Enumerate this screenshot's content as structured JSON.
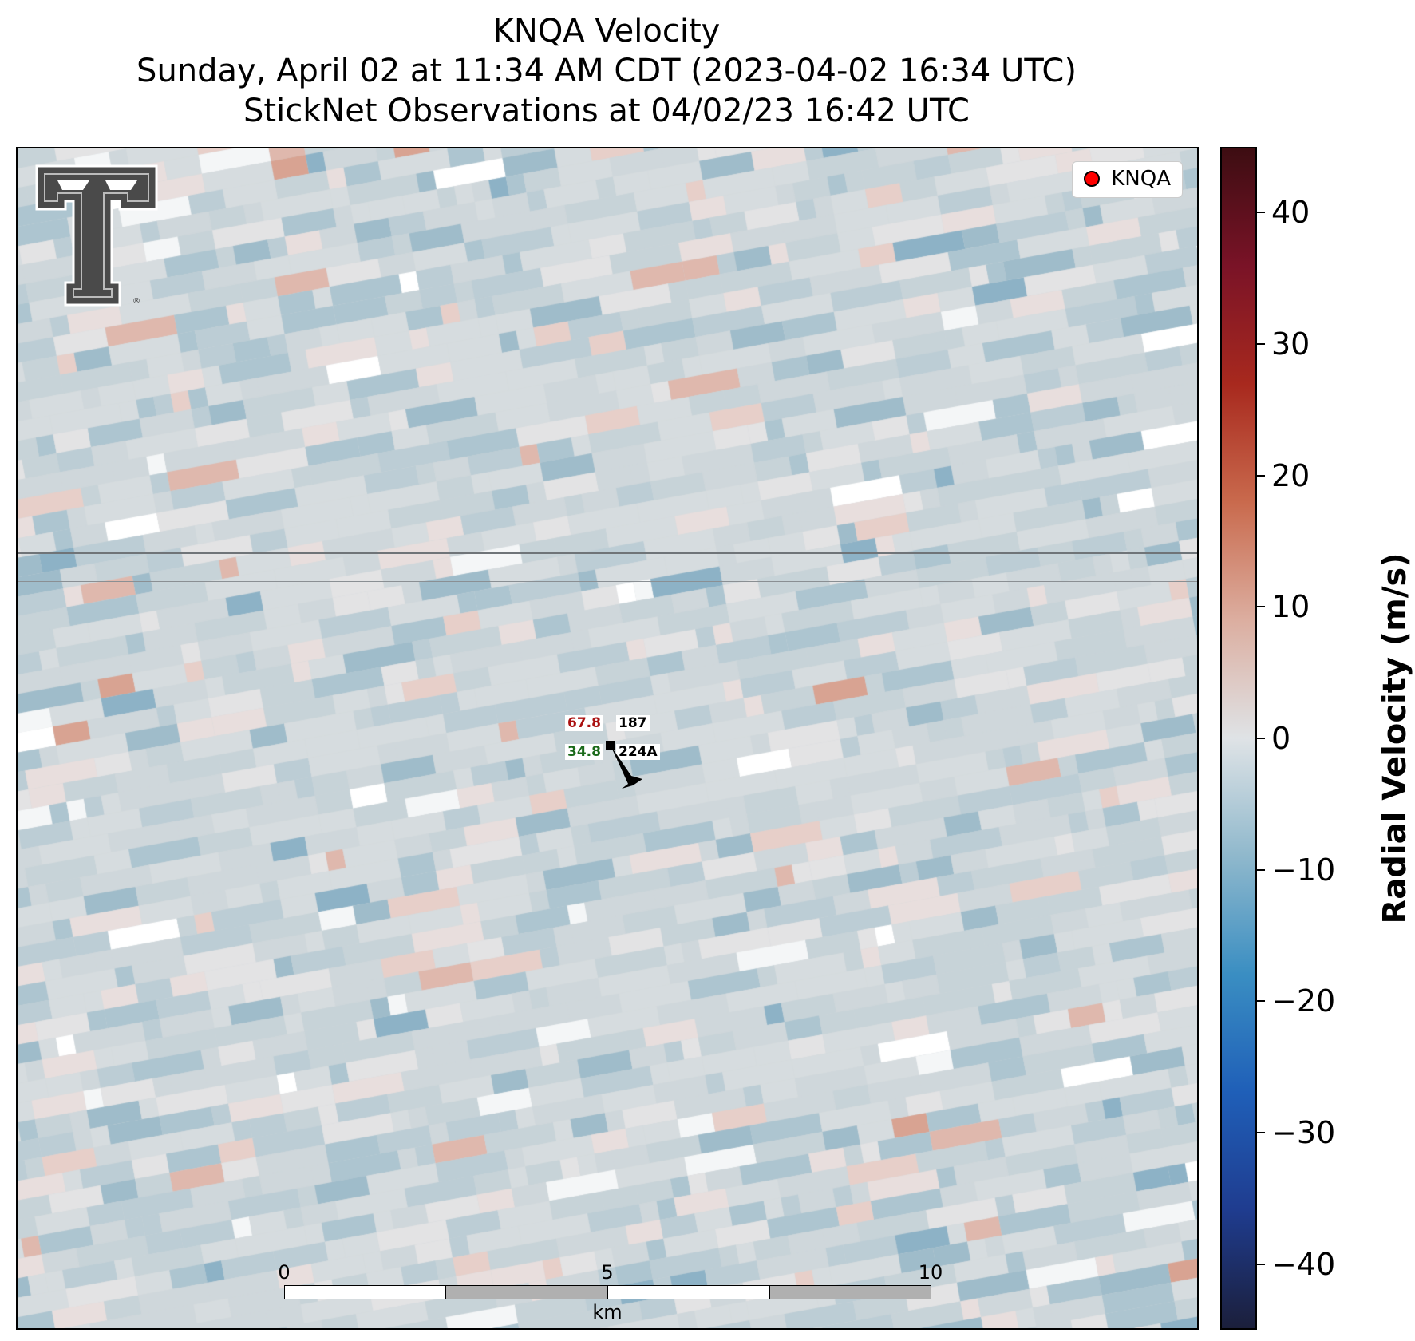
{
  "title": {
    "line1": "KNQA Velocity",
    "line2": "Sunday, April 02 at 11:34 AM CDT (2023-04-02 16:34 UTC)",
    "line3": "StickNet Observations at 04/02/23 16:42 UTC"
  },
  "legend": {
    "label": "KNQA",
    "marker_color": "#ff0000"
  },
  "logo": {
    "icon": "texas-tech-double-t-logo"
  },
  "station": {
    "id": "224A",
    "temperature": "67.8",
    "pressure": "187",
    "dewpoint": "34.8",
    "wind_barb_icon": "wind-barb-icon"
  },
  "scale_bar": {
    "ticks": [
      "0",
      "5",
      "10"
    ],
    "unit": "km"
  },
  "colorbar": {
    "label": "Radial Velocity (m/s)",
    "min": -45,
    "max": 45,
    "ticks": [
      40,
      30,
      20,
      10,
      0,
      -10,
      -20,
      -30,
      -40
    ],
    "tick_labels": [
      "40",
      "30",
      "20",
      "10",
      "0",
      "−10",
      "−20",
      "−30",
      "−40"
    ],
    "colors": [
      "#1b1f3b",
      "#1f3c8f",
      "#1f5fb8",
      "#3a8ec2",
      "#8fb8cc",
      "#dfe3e6",
      "#dcaea0",
      "#c96a4d",
      "#a8291e",
      "#7a1327",
      "#3d0d12"
    ]
  }
}
